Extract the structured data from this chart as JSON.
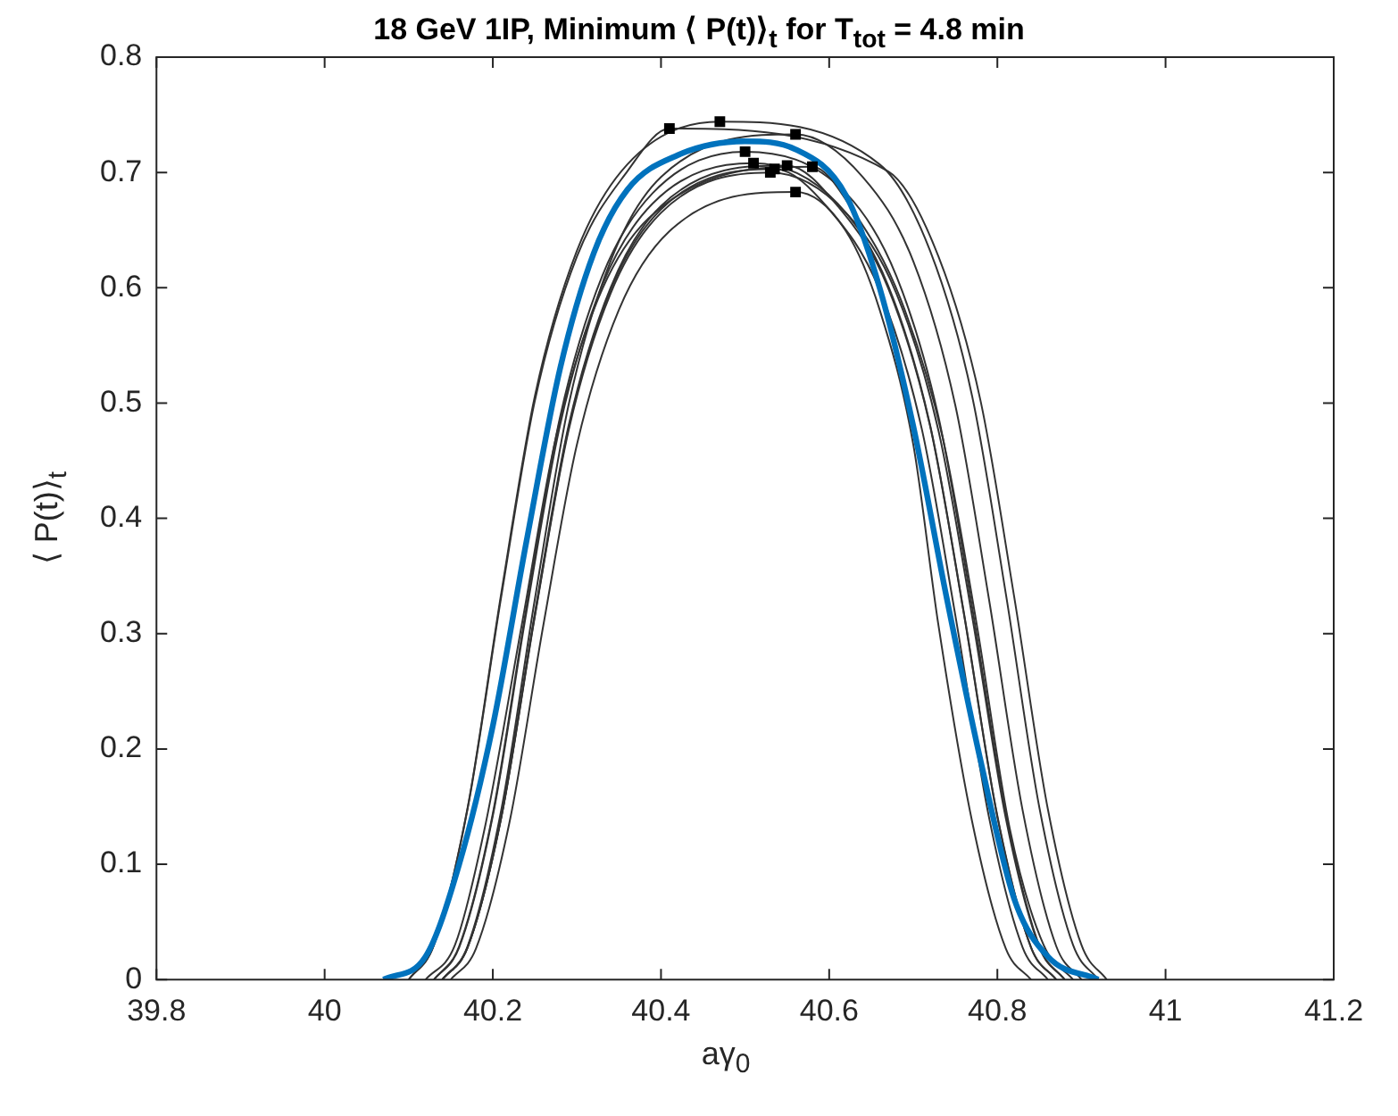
{
  "chart_data": {
    "type": "line",
    "title": "18 GeV 1IP, Minimum ⟨ P(t)⟩$_{t}$ for T$_{tot}$ = 4.8 min",
    "xlabel": "aγ$_{0}$",
    "ylabel": "⟨ P(t)⟩$_{t}$",
    "xlim": [
      39.8,
      41.2
    ],
    "xticks": [
      39.8,
      40,
      40.2,
      40.4,
      40.6,
      40.8,
      41,
      41.2
    ],
    "ylim": [
      0,
      0.8
    ],
    "yticks": [
      0,
      0.1,
      0.2,
      0.3,
      0.4,
      0.5,
      0.6,
      0.7,
      0.8
    ],
    "grid": false,
    "legend": false,
    "marker": "none",
    "line_style": "solid",
    "series": [
      {
        "color": "#333333",
        "x": [
          40.1,
          40.13,
          40.17,
          40.21,
          40.25,
          40.3,
          40.36,
          40.41,
          40.67,
          40.73,
          40.78,
          40.82,
          40.86,
          40.9,
          40.93
        ],
        "values": [
          0,
          0.03,
          0.148,
          0.332,
          0.502,
          0.627,
          0.701,
          0.738,
          0.701,
          0.627,
          0.502,
          0.332,
          0.148,
          0.03,
          0
        ]
      },
      {
        "color": "#333333",
        "x": [
          40.1,
          40.13,
          40.17,
          40.21,
          40.25,
          40.3,
          40.36,
          40.47,
          40.66,
          40.72,
          40.77,
          40.81,
          40.85,
          40.89,
          40.92
        ],
        "values": [
          0,
          0.03,
          0.149,
          0.335,
          0.506,
          0.632,
          0.707,
          0.744,
          0.707,
          0.632,
          0.506,
          0.335,
          0.149,
          0.03,
          0
        ]
      },
      {
        "color": "#333333",
        "x": [
          40.13,
          40.16,
          40.2,
          40.24,
          40.28,
          40.33,
          40.39,
          40.5,
          40.62,
          40.68,
          40.73,
          40.77,
          40.81,
          40.85,
          40.88
        ],
        "values": [
          0,
          0.029,
          0.144,
          0.323,
          0.488,
          0.61,
          0.682,
          0.718,
          0.682,
          0.61,
          0.488,
          0.323,
          0.144,
          0.029,
          0
        ]
      },
      {
        "color": "#333333",
        "x": [
          40.13,
          40.16,
          40.2,
          40.24,
          40.28,
          40.33,
          40.39,
          40.51,
          40.61,
          40.67,
          40.72,
          40.76,
          40.8,
          40.84,
          40.87
        ],
        "values": [
          0,
          0.028,
          0.142,
          0.319,
          0.481,
          0.602,
          0.673,
          0.708,
          0.673,
          0.602,
          0.481,
          0.319,
          0.142,
          0.028,
          0
        ]
      },
      {
        "color": "#333333",
        "x": [
          40.14,
          40.17,
          40.21,
          40.25,
          40.29,
          40.34,
          40.4,
          40.535,
          40.6,
          40.66,
          40.71,
          40.75,
          40.79,
          40.83,
          40.86
        ],
        "values": [
          0,
          0.028,
          0.141,
          0.316,
          0.478,
          0.598,
          0.668,
          0.703,
          0.668,
          0.598,
          0.478,
          0.316,
          0.141,
          0.028,
          0
        ]
      },
      {
        "color": "#333333",
        "x": [
          40.14,
          40.17,
          40.21,
          40.25,
          40.29,
          40.34,
          40.4,
          40.55,
          40.61,
          40.67,
          40.72,
          40.76,
          40.8,
          40.84,
          40.87
        ],
        "values": [
          0,
          0.028,
          0.141,
          0.318,
          0.48,
          0.6,
          0.671,
          0.706,
          0.671,
          0.6,
          0.48,
          0.318,
          0.141,
          0.028,
          0
        ]
      },
      {
        "color": "#333333",
        "x": [
          40.14,
          40.17,
          40.21,
          40.25,
          40.29,
          40.34,
          40.4,
          40.56,
          40.64,
          40.7,
          40.75,
          40.79,
          40.83,
          40.87,
          40.9
        ],
        "values": [
          0,
          0.029,
          0.147,
          0.33,
          0.498,
          0.623,
          0.696,
          0.733,
          0.696,
          0.623,
          0.498,
          0.33,
          0.147,
          0.029,
          0
        ]
      },
      {
        "color": "#333333",
        "x": [
          40.15,
          40.18,
          40.22,
          40.26,
          40.3,
          40.35,
          40.41,
          40.56,
          40.62,
          40.66,
          40.7,
          40.73,
          40.77,
          40.81,
          40.84
        ],
        "values": [
          0,
          0.027,
          0.137,
          0.307,
          0.464,
          0.581,
          0.649,
          0.683,
          0.649,
          0.581,
          0.464,
          0.307,
          0.137,
          0.027,
          0
        ]
      },
      {
        "color": "#333333",
        "x": [
          40.12,
          40.155,
          40.19,
          40.235,
          40.275,
          40.325,
          40.385,
          40.58,
          40.63,
          40.685,
          40.735,
          40.775,
          40.815,
          40.855,
          40.89
        ],
        "values": [
          0,
          0.03,
          0.13,
          0.31,
          0.47,
          0.59,
          0.66,
          0.705,
          0.665,
          0.59,
          0.47,
          0.31,
          0.13,
          0.03,
          0
        ]
      },
      {
        "color": "#333333",
        "x": [
          40.14,
          40.17,
          40.21,
          40.25,
          40.29,
          40.34,
          40.4,
          40.53,
          40.62,
          40.68,
          40.73,
          40.77,
          40.81,
          40.85,
          40.88
        ],
        "values": [
          0,
          0.028,
          0.14,
          0.315,
          0.476,
          0.595,
          0.665,
          0.7,
          0.665,
          0.595,
          0.476,
          0.315,
          0.14,
          0.028,
          0
        ]
      },
      {
        "color": "#0072bd",
        "x": [
          40.07,
          40.12,
          40.16,
          40.2,
          40.24,
          40.28,
          40.32,
          40.36,
          40.42,
          40.5,
          40.56,
          40.62,
          40.66,
          40.7,
          40.74,
          40.78,
          40.82,
          40.86,
          40.92
        ],
        "values": [
          0,
          0.02,
          0.1,
          0.22,
          0.38,
          0.53,
          0.63,
          0.685,
          0.715,
          0.727,
          0.72,
          0.68,
          0.6,
          0.48,
          0.33,
          0.19,
          0.07,
          0.02,
          0
        ]
      },
      {
        "type": "scatter",
        "marker": "square",
        "color": "#000000",
        "x": [
          40.41,
          40.47,
          40.5,
          40.51,
          40.535,
          40.55,
          40.56,
          40.56,
          40.58,
          40.53
        ],
        "values": [
          0.738,
          0.744,
          0.718,
          0.708,
          0.703,
          0.706,
          0.733,
          0.683,
          0.705,
          0.7
        ]
      }
    ]
  }
}
